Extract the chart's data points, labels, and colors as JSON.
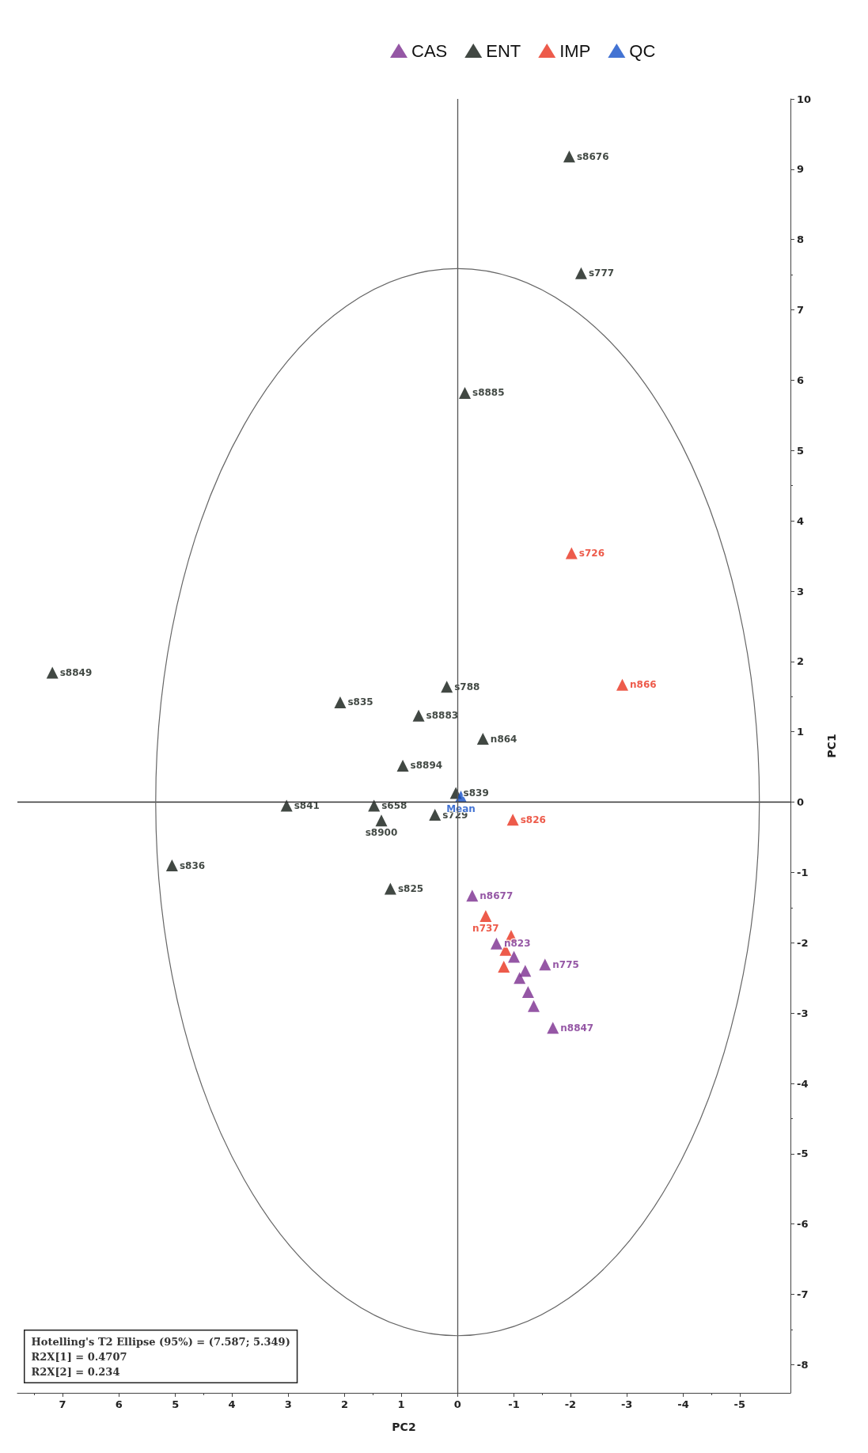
{
  "chart_data": {
    "type": "scatter",
    "xlabel": "PC2",
    "ylabel": "PC1",
    "xlim": [
      7.8,
      -5.9
    ],
    "xticks": [
      7,
      6,
      5,
      4,
      3,
      2,
      1,
      0,
      -1,
      -2,
      -3,
      -4,
      -5
    ],
    "ylim": [
      -8.4,
      10
    ],
    "yticks": [
      -8,
      -7,
      -6,
      -5,
      -4,
      -3,
      -2,
      -1,
      0,
      1,
      2,
      3,
      4,
      5,
      6,
      7,
      8,
      9,
      10
    ],
    "grid": false,
    "legend": "top right",
    "marker": "triangle",
    "annotations": [
      "Hotelling's T2 Ellipse (95%) = (7.587; 5.349)",
      "R2X[1] = 0.4707",
      "R2X[2] = 0.234"
    ],
    "ref_lines": [
      {
        "axis": "y",
        "value": 0,
        "color": "#333333"
      },
      {
        "axis": "x",
        "value": 0,
        "color": "#555555"
      }
    ],
    "series": [
      {
        "name": "CAS",
        "color": "#7b2d8e",
        "values": [
          -1.33,
          -2.01,
          -2.31,
          -3.21,
          -2.2,
          -2.4,
          -2.5,
          -2.7,
          -2.9
        ],
        "x": [
          -0.26,
          -0.69,
          -1.55,
          -1.69,
          -1.0,
          -1.2,
          -1.1,
          -1.25,
          -1.35
        ],
        "value_labels": [
          "n8677",
          "n823",
          "n775",
          "n8847",
          null,
          null,
          null,
          null,
          null
        ]
      },
      {
        "name": "ENT",
        "color": "#111a14",
        "values": [
          9.18,
          7.52,
          5.82,
          1.84,
          1.42,
          1.23,
          1.64,
          0.9,
          0.52,
          -0.05,
          -0.05,
          -0.26,
          -0.18,
          -0.9,
          -1.23,
          0.13
        ],
        "x": [
          -1.98,
          -2.19,
          -0.13,
          7.18,
          2.08,
          0.69,
          0.19,
          -0.45,
          0.97,
          3.03,
          1.48,
          1.35,
          0.4,
          5.06,
          1.19,
          0.03
        ],
        "value_labels": [
          "s8676",
          "s777",
          "s8885",
          "s8849",
          "s835",
          "s8883",
          "s788",
          "n864",
          "s8894",
          "s841",
          "s658",
          "s8900",
          "s729",
          "s836",
          "s825",
          "s839"
        ]
      },
      {
        "name": "IMP",
        "color": "#e8321e",
        "values": [
          3.54,
          1.67,
          -0.25,
          -1.62,
          -2.34,
          -1.9,
          -2.1
        ],
        "x": [
          -2.02,
          -2.92,
          -0.98,
          -0.5,
          -0.82,
          -0.95,
          -0.85
        ],
        "value_labels": [
          "s726",
          "n866",
          "s826",
          "n737",
          null,
          null,
          null
        ]
      },
      {
        "name": "QC",
        "color": "#1450c8",
        "values": [
          0.08
        ],
        "x": [
          -0.06
        ],
        "value_labels": [
          "Mean"
        ]
      }
    ]
  }
}
